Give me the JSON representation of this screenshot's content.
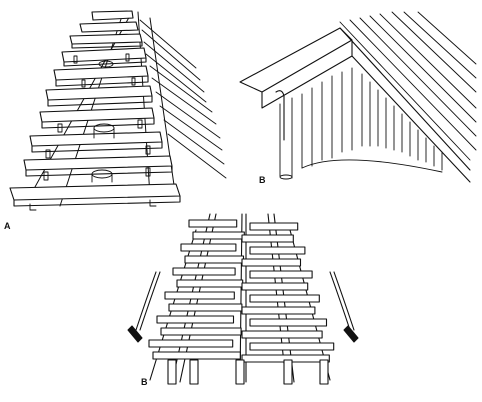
{
  "labels": {
    "panel_a": "A",
    "panel_b_top": "B",
    "panel_b_bottom": "B"
  },
  "colors": {
    "ink": "#111111",
    "paper": "#ffffff"
  }
}
